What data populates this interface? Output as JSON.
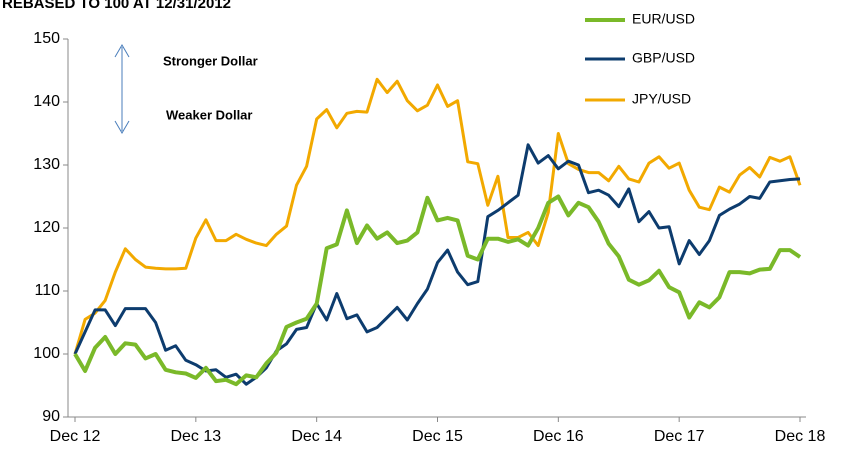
{
  "chart_data": {
    "type": "line",
    "title": "REBASED TO 100 AT 12/31/2012",
    "annotations": [
      "Stronger Dollar",
      "Weaker Dollar"
    ],
    "categories": [
      "Dec 12",
      null,
      null,
      null,
      null,
      null,
      null,
      null,
      null,
      null,
      null,
      null,
      "Dec 13",
      null,
      null,
      null,
      null,
      null,
      null,
      null,
      null,
      null,
      null,
      null,
      "Dec 14",
      null,
      null,
      null,
      null,
      null,
      null,
      null,
      null,
      null,
      null,
      null,
      "Dec 15",
      null,
      null,
      null,
      null,
      null,
      null,
      null,
      null,
      null,
      null,
      null,
      "Dec 16",
      null,
      null,
      null,
      null,
      null,
      null,
      null,
      null,
      null,
      null,
      null,
      "Dec 17",
      null,
      null,
      null,
      null,
      null,
      null,
      null,
      null,
      null,
      null,
      null,
      "Dec 18"
    ],
    "series": [
      {
        "name": "EUR/USD",
        "color": "#7ab929",
        "values": [
          100,
          97.3,
          101,
          102.7,
          100,
          101.7,
          101.5,
          99.3,
          100,
          97.5,
          97.1,
          96.9,
          96.2,
          97.8,
          95.7,
          95.9,
          95.2,
          96.6,
          96.3,
          98.5,
          100.2,
          104.3,
          105,
          105.6,
          108,
          116.8,
          117.4,
          122.8,
          117.6,
          120.4,
          118.3,
          119.3,
          117.6,
          118,
          119.3,
          124.8,
          121.2,
          121.6,
          121.2,
          115.6,
          115,
          118.3,
          118.3,
          117.8,
          118.2,
          117.2,
          120,
          124,
          125,
          122,
          124,
          123.3,
          121,
          117.5,
          115.5,
          111.8,
          111,
          111.7,
          113.2,
          110.6,
          109.8,
          105.8,
          108.2,
          107.4,
          109,
          113,
          113,
          112.8,
          113.4,
          113.5,
          116.5,
          116.5,
          115.4
        ]
      },
      {
        "name": "GBP/USD",
        "color": "#0d3c6e",
        "values": [
          100,
          103.5,
          107,
          107,
          104.5,
          107.2,
          107.2,
          107.2,
          105,
          100.6,
          101.3,
          99,
          98.3,
          97.3,
          97.5,
          96.3,
          96.8,
          95.2,
          96.3,
          97.8,
          100.5,
          101.6,
          103.9,
          104.2,
          108,
          105.4,
          109.6,
          105.6,
          106.2,
          103.5,
          104.2,
          105.8,
          107.4,
          105.4,
          108,
          110.3,
          114.5,
          116.5,
          113,
          111,
          111.5,
          121.8,
          122.8,
          124,
          125.2,
          133.2,
          130.3,
          131.5,
          129.4,
          130.6,
          130,
          125.6,
          126,
          125.2,
          123.4,
          126.2,
          121,
          122.6,
          120,
          120.2,
          114.3,
          118,
          115.8,
          118,
          122,
          123,
          123.8,
          125,
          124.7,
          127.3,
          127.5,
          127.7,
          127.8
        ]
      },
      {
        "name": "JPY/USD",
        "color": "#f2a900",
        "values": [
          100,
          105.5,
          106.5,
          108.5,
          113,
          116.7,
          115,
          113.8,
          113.6,
          113.5,
          113.5,
          113.6,
          118.4,
          121.3,
          118,
          118,
          119,
          118.2,
          117.6,
          117.2,
          119,
          120.3,
          126.8,
          129.8,
          137.3,
          138.8,
          135.9,
          138.2,
          138.5,
          138.4,
          143.6,
          141.5,
          143.3,
          140.2,
          138.6,
          139.5,
          142.7,
          139.3,
          140.2,
          130.5,
          130.2,
          123.6,
          128.2,
          118.5,
          118.5,
          119.3,
          117.2,
          122.5,
          135,
          130.2,
          129.3,
          128.8,
          128.8,
          127.5,
          129.8,
          127.8,
          127.3,
          130.3,
          131.3,
          129.5,
          130.3,
          126,
          123.3,
          122.9,
          126.5,
          125.7,
          128.4,
          129.6,
          128.1,
          131.2,
          130.6,
          131.3,
          126.8
        ]
      }
    ],
    "ylim": [
      90,
      150
    ],
    "yticks": [
      90,
      100,
      110,
      120,
      130,
      140,
      150
    ],
    "grid": false
  }
}
